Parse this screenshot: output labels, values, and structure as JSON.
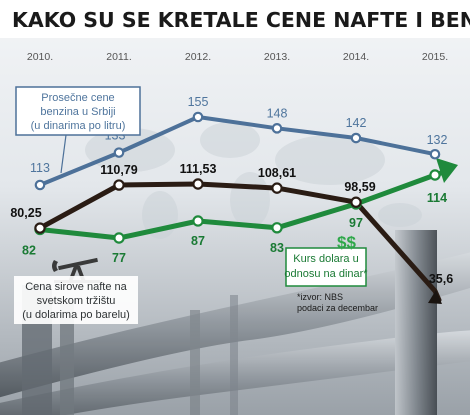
{
  "title": "KAKO SU SE KRETALE CENE NAFTE I BENZINA",
  "colors": {
    "petrol": "#4d7199",
    "oil": "#2a1c14",
    "dollar": "#1f8a3c",
    "label_petrol": "#4f759d",
    "label_oil": "#2f3335",
    "label_dollar": "#1a7a34"
  },
  "chart_data": {
    "type": "line",
    "categories": [
      "2010.",
      "2011.",
      "2012.",
      "2013.",
      "2014.",
      "2015."
    ],
    "series": [
      {
        "key": "petrol",
        "name": "Prosečne cene benzina u Srbiji (u dinarima po litru)",
        "values": [
          113,
          133,
          155,
          148,
          142,
          132
        ],
        "labels": [
          "113",
          "133",
          "155",
          "148",
          "142",
          "132"
        ]
      },
      {
        "key": "oil",
        "name": "Cena sirove nafte na svetskom tržištu (u dolarima po barelu)",
        "values": [
          80.25,
          110.79,
          111.53,
          108.61,
          98.59,
          35.6
        ],
        "labels": [
          "80,25",
          "110,79",
          "111,53",
          "108,61",
          "98,59",
          "35,6"
        ]
      },
      {
        "key": "dollar",
        "name": "Kurs dolara u odnosu na dinar*",
        "values": [
          82,
          77,
          87,
          83,
          97,
          114
        ],
        "labels": [
          "82",
          "77",
          "87",
          "83",
          "97",
          "114"
        ]
      }
    ],
    "grid": false,
    "legend": "inline labels"
  },
  "legend_boxes": {
    "petrol": [
      "Prosečne cene",
      "benzina u Srbiji",
      "(u dinarima po litru)"
    ],
    "oil": [
      "Cena sirove nafte na",
      "svetskom tržištu",
      "(u dolarima po barelu)"
    ],
    "dollar": [
      "Kurs dolara u",
      "odnosu na dinar*"
    ]
  },
  "footnote": [
    "*izvor: NBS",
    "podaci za decembar"
  ],
  "dollar_icon": "$$"
}
